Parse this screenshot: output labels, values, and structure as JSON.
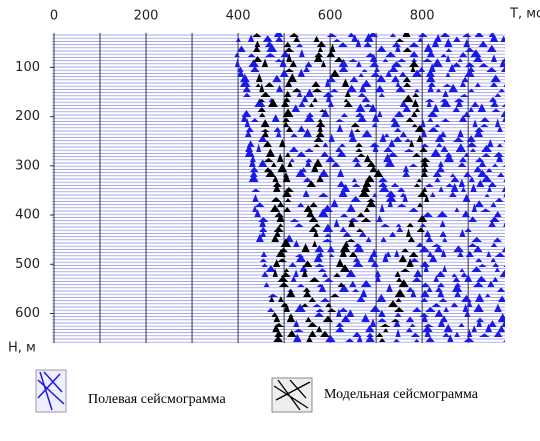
{
  "chart_data": {
    "type": "seismogram",
    "x_label": "T, мс",
    "y_label": "Н, м",
    "xlim": [
      0,
      980
    ],
    "ylim": [
      30,
      660
    ],
    "xticks": [
      0,
      200,
      400,
      600,
      800
    ],
    "x_minor_ticks": [
      100,
      300,
      500,
      700,
      900
    ],
    "yticks": [
      100,
      200,
      300,
      400,
      500,
      600
    ],
    "trace_color": "#8a8ae8",
    "grid_color": "#333344",
    "legend": [
      {
        "name": "Полевая сейсмограмма",
        "color": "#1a1ae6"
      },
      {
        "name": "Модельная сейсмограмма",
        "color": "#000000"
      }
    ]
  }
}
